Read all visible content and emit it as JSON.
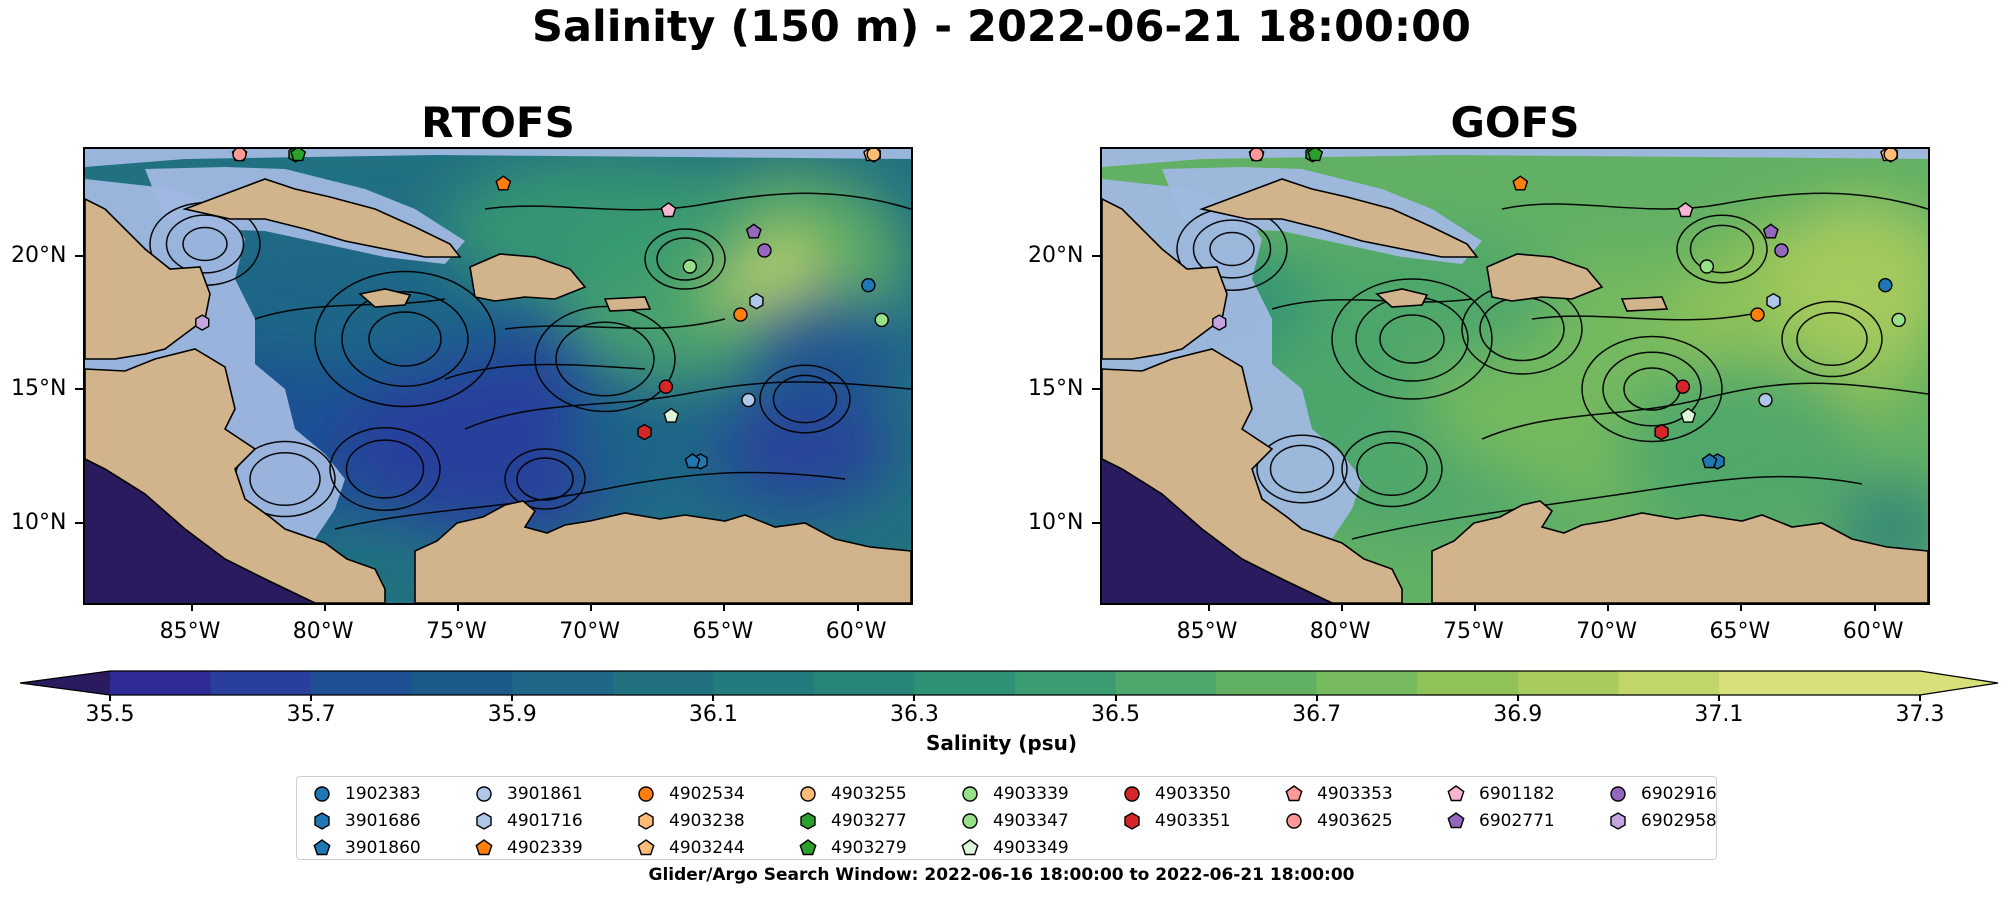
{
  "figure": {
    "suptitle": "Salinity (150 m) - 2022-06-21 18:00:00",
    "colorbar_label": "Salinity (psu)",
    "search_window": "Glider/Argo Search Window: 2022-06-16 18:00:00 to 2022-06-21 18:00:00"
  },
  "colors": {
    "land": "#d2b48c",
    "shelf_water": "#a0b8e0",
    "coast": "#000000",
    "streamline": "#000000",
    "colormap": [
      "#2a1a5e",
      "#2e2a96",
      "#283f9c",
      "#1f4f93",
      "#1b5b8c",
      "#1e6786",
      "#217181",
      "#247b7d",
      "#288679",
      "#2e9175",
      "#3a9c70",
      "#4da66b",
      "#62b064",
      "#78ba5e",
      "#8fc259",
      "#a7cb5d",
      "#c0d56a",
      "#d7e07a"
    ]
  },
  "chart_data": [
    {
      "type": "heatmap",
      "title": "RTOFS",
      "variable": "Salinity (psu)",
      "depth": "150 m",
      "xlim": [
        -89,
        -58
      ],
      "ylim": [
        7,
        24
      ],
      "xticks": [
        "85°W",
        "80°W",
        "75°W",
        "70°W",
        "65°W",
        "60°W"
      ],
      "xtick_values": [
        -85,
        -80,
        -75,
        -70,
        -65,
        -60
      ],
      "yticks": [
        "20°N",
        "15°N",
        "10°N"
      ],
      "ytick_values": [
        20,
        15,
        10
      ],
      "colorbar": {
        "min": 35.5,
        "max": 37.3,
        "step": 0.1,
        "extend": "both",
        "ticks": [
          "35.5",
          "35.7",
          "35.9",
          "36.1",
          "36.3",
          "36.5",
          "36.7",
          "36.9",
          "37.1",
          "37.3"
        ]
      },
      "field_summary": "Western Caribbean ~35.8-36.0 psu; eastern Caribbean ~36.4-36.8 psu; north of Hispaniola ~37.0-37.2 psu",
      "overlay": "streamlines"
    },
    {
      "type": "heatmap",
      "title": "GOFS",
      "variable": "Salinity (psu)",
      "depth": "150 m",
      "xlim": [
        -89,
        -58
      ],
      "ylim": [
        7,
        24
      ],
      "xticks": [
        "85°W",
        "80°W",
        "75°W",
        "70°W",
        "65°W",
        "60°W"
      ],
      "xtick_values": [
        -85,
        -80,
        -75,
        -70,
        -65,
        -60
      ],
      "yticks": [
        "20°N",
        "15°N",
        "10°N"
      ],
      "ytick_values": [
        20,
        15,
        10
      ],
      "colorbar": {
        "min": 35.5,
        "max": 37.3,
        "step": 0.1,
        "extend": "both",
        "ticks": [
          "35.5",
          "35.7",
          "35.9",
          "36.1",
          "36.3",
          "36.5",
          "36.7",
          "36.9",
          "37.1",
          "37.3"
        ]
      },
      "field_summary": "Caribbean basin mostly ~36.6-36.9 psu; north-east Atlantic ~37.0-37.2 psu",
      "overlay": "streamlines"
    }
  ],
  "floats": [
    {
      "id": "1902383",
      "color": "#1f77b4",
      "marker": "circle",
      "lon": -59.6,
      "lat": 18.9
    },
    {
      "id": "3901686",
      "color": "#1f77b4",
      "marker": "hexagon",
      "lon": -65.9,
      "lat": 12.3
    },
    {
      "id": "3901860",
      "color": "#1f77b4",
      "marker": "pentagon",
      "lon": -66.2,
      "lat": 12.3
    },
    {
      "id": "3901861",
      "color": "#aec7e8",
      "marker": "circle",
      "lon": -64.1,
      "lat": 14.6
    },
    {
      "id": "4901716",
      "color": "#aec7e8",
      "marker": "hexagon",
      "lon": -63.8,
      "lat": 18.3
    },
    {
      "id": "4902339",
      "color": "#ff7f0e",
      "marker": "pentagon",
      "lon": -73.3,
      "lat": 22.7
    },
    {
      "id": "4902534",
      "color": "#ff7f0e",
      "marker": "circle",
      "lon": -64.4,
      "lat": 17.8
    },
    {
      "id": "4903238",
      "color": "#ffbb78",
      "marker": "hexagon",
      "lon": -59.4,
      "lat": 23.8
    },
    {
      "id": "4903244",
      "color": "#ffbb78",
      "marker": "pentagon",
      "lon": -59.5,
      "lat": 23.8
    },
    {
      "id": "4903255",
      "color": "#ffbb78",
      "marker": "circle",
      "lon": -59.4,
      "lat": 23.8
    },
    {
      "id": "4903277",
      "color": "#2ca02c",
      "marker": "hexagon",
      "lon": -81.1,
      "lat": 23.8
    },
    {
      "id": "4903279",
      "color": "#2ca02c",
      "marker": "pentagon",
      "lon": -81.0,
      "lat": 23.8
    },
    {
      "id": "4903339",
      "color": "#98df8a",
      "marker": "circle",
      "lon": -66.3,
      "lat": 19.6
    },
    {
      "id": "4903347",
      "color": "#98df8a",
      "marker": "circle",
      "lon": -59.1,
      "lat": 17.6
    },
    {
      "id": "4903349",
      "color": "#ddf5d9",
      "marker": "pentagon",
      "lon": -67.0,
      "lat": 14.0
    },
    {
      "id": "4903350",
      "color": "#d62728",
      "marker": "circle",
      "lon": -67.2,
      "lat": 15.1
    },
    {
      "id": "4903351",
      "color": "#d62728",
      "marker": "hexagon",
      "lon": -68.0,
      "lat": 13.4
    },
    {
      "id": "4903353",
      "color": "#ff9896",
      "marker": "pentagon",
      "lon": -83.2,
      "lat": 23.8
    },
    {
      "id": "4903625",
      "color": "#ff9896",
      "marker": "circle",
      "lon": -83.2,
      "lat": 23.8
    },
    {
      "id": "6901182",
      "color": "#f7b6d2",
      "marker": "pentagon",
      "lon": -67.1,
      "lat": 21.7
    },
    {
      "id": "6902771",
      "color": "#9467bd",
      "marker": "pentagon",
      "lon": -63.9,
      "lat": 20.9
    },
    {
      "id": "6902916",
      "color": "#9467bd",
      "marker": "circle",
      "lon": -63.5,
      "lat": 20.2
    },
    {
      "id": "6902958",
      "color": "#c5a5e0",
      "marker": "hexagon",
      "lon": -84.6,
      "lat": 17.5
    }
  ]
}
